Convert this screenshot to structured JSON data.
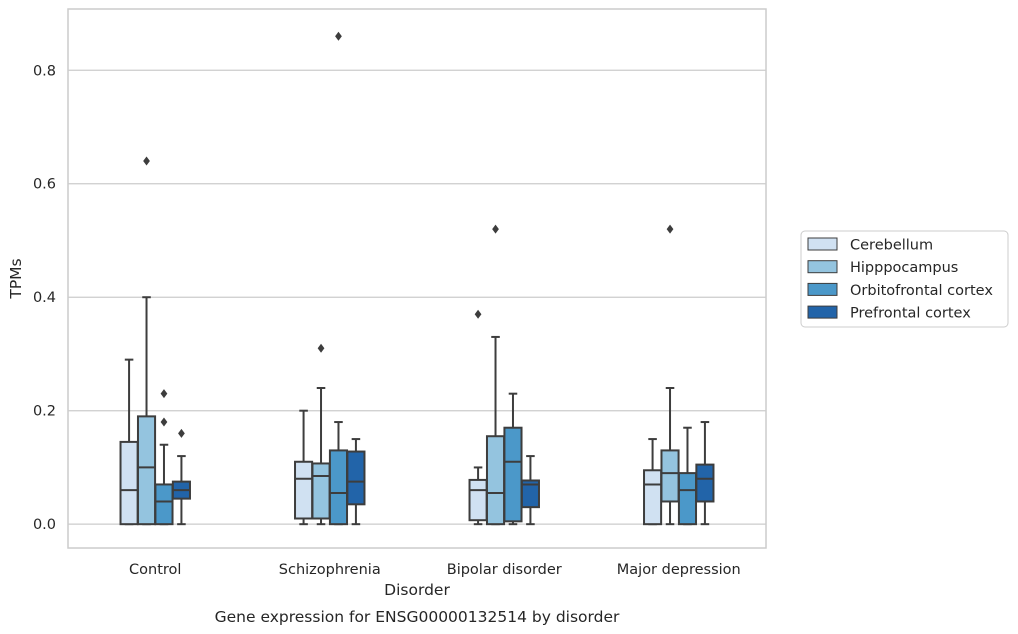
{
  "chart_data": {
    "type": "box",
    "caption": "Gene expression for ENSG00000132514 by disorder",
    "xlabel": "Disorder",
    "ylabel": "TPMs",
    "ylim": [
      -0.042,
      0.908
    ],
    "yticks": [
      0.0,
      0.2,
      0.4,
      0.6,
      0.8
    ],
    "ytick_labels": [
      "0.0",
      "0.2",
      "0.4",
      "0.6",
      "0.8"
    ],
    "grid": true,
    "legend_position": "right",
    "categories": [
      "Control",
      "Schizophrenia",
      "Bipolar disorder",
      "Major depression"
    ],
    "series": [
      {
        "name": "Cerebellum",
        "color": "#d0e1f2",
        "boxes": [
          {
            "whislo": 0.0,
            "q1": 0.0,
            "med": 0.06,
            "q3": 0.145,
            "whishi": 0.29,
            "fliers": []
          },
          {
            "whislo": 0.0,
            "q1": 0.01,
            "med": 0.08,
            "q3": 0.11,
            "whishi": 0.2,
            "fliers": []
          },
          {
            "whislo": 0.0,
            "q1": 0.007,
            "med": 0.06,
            "q3": 0.078,
            "whishi": 0.1,
            "fliers": [
              0.37
            ]
          },
          {
            "whislo": 0.0,
            "q1": 0.0,
            "med": 0.07,
            "q3": 0.095,
            "whishi": 0.15,
            "fliers": []
          }
        ]
      },
      {
        "name": "Hipppocampus",
        "color": "#94c4df",
        "boxes": [
          {
            "whislo": 0.0,
            "q1": 0.0,
            "med": 0.1,
            "q3": 0.19,
            "whishi": 0.4,
            "fliers": [
              0.64
            ]
          },
          {
            "whislo": 0.0,
            "q1": 0.01,
            "med": 0.085,
            "q3": 0.107,
            "whishi": 0.24,
            "fliers": [
              0.31
            ]
          },
          {
            "whislo": 0.0,
            "q1": 0.0,
            "med": 0.055,
            "q3": 0.155,
            "whishi": 0.33,
            "fliers": [
              0.52
            ]
          },
          {
            "whislo": 0.0,
            "q1": 0.04,
            "med": 0.09,
            "q3": 0.13,
            "whishi": 0.24,
            "fliers": [
              0.52
            ]
          }
        ]
      },
      {
        "name": "Orbitofrontal cortex",
        "color": "#4b98c9",
        "boxes": [
          {
            "whislo": 0.0,
            "q1": 0.0,
            "med": 0.04,
            "q3": 0.07,
            "whishi": 0.14,
            "fliers": [
              0.23,
              0.18
            ]
          },
          {
            "whislo": 0.0,
            "q1": 0.0,
            "med": 0.055,
            "q3": 0.13,
            "whishi": 0.18,
            "fliers": [
              0.86
            ]
          },
          {
            "whislo": 0.0,
            "q1": 0.005,
            "med": 0.11,
            "q3": 0.17,
            "whishi": 0.23,
            "fliers": []
          },
          {
            "whislo": 0.0,
            "q1": 0.0,
            "med": 0.06,
            "q3": 0.09,
            "whishi": 0.17,
            "fliers": []
          }
        ]
      },
      {
        "name": "Prefrontal cortex",
        "color": "#2264a9",
        "boxes": [
          {
            "whislo": 0.0,
            "q1": 0.045,
            "med": 0.06,
            "q3": 0.075,
            "whishi": 0.12,
            "fliers": [
              0.16
            ]
          },
          {
            "whislo": 0.0,
            "q1": 0.035,
            "med": 0.075,
            "q3": 0.128,
            "whishi": 0.15,
            "fliers": []
          },
          {
            "whislo": 0.0,
            "q1": 0.03,
            "med": 0.07,
            "q3": 0.077,
            "whishi": 0.12,
            "fliers": []
          },
          {
            "whislo": 0.0,
            "q1": 0.04,
            "med": 0.08,
            "q3": 0.105,
            "whishi": 0.18,
            "fliers": []
          }
        ]
      }
    ]
  }
}
